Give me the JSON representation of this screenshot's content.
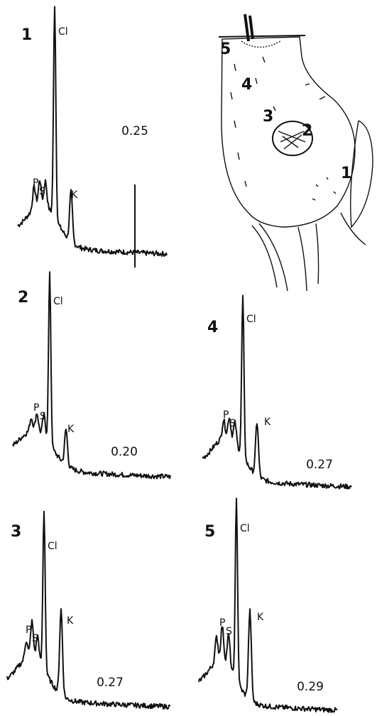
{
  "panels": [
    {
      "number": "1",
      "p": "P",
      "s": "S",
      "cl": "Cl",
      "k": "K",
      "ratio": "0.25"
    },
    {
      "number": "2",
      "p": "P",
      "s": "S",
      "cl": "Cl",
      "k": "K",
      "ratio": "0.20"
    },
    {
      "number": "4",
      "p": "P",
      "s": "S",
      "cl": "Cl",
      "k": "K",
      "ratio": "0.27"
    },
    {
      "number": "3",
      "p": "P",
      "s": "S",
      "cl": "Cl",
      "k": "K",
      "ratio": "0.27"
    },
    {
      "number": "5",
      "p": "P",
      "s": "S",
      "cl": "Cl",
      "k": "K",
      "ratio": "0.29"
    }
  ],
  "cell": {
    "labels": [
      "5",
      "4",
      "3",
      "2",
      "1"
    ]
  }
}
